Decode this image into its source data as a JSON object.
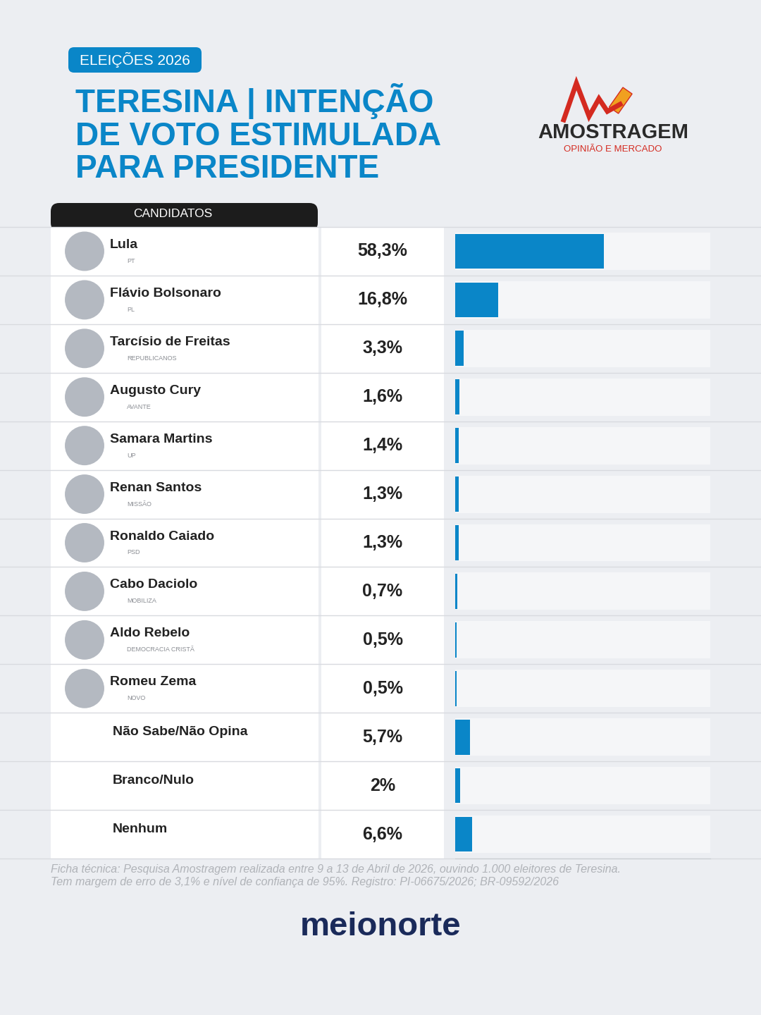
{
  "chart_data": {
    "type": "bar",
    "orientation": "horizontal",
    "badge": "ELEIÇÕES 2026",
    "title": "TERESINA | INTENÇÃO DE VOTO ESTIMULADA PARA PRESIDENTE",
    "logo_name": "AMOSTRAGEM",
    "logo_tagline": "OPINIÃO E MERCADO",
    "column_header": "CANDIDATOS",
    "categories": [
      "Lula",
      "Flávio Bolsonaro",
      "Tarcísio de Freitas",
      "Augusto Cury",
      "Samara Martins",
      "Renan Santos",
      "Ronaldo Caiado",
      "Cabo Daciolo",
      "Aldo Rebelo",
      "Romeu Zema",
      "Não Sabe/Não Opina",
      "Branco/Nulo",
      "Nenhum"
    ],
    "parties": [
      "PT",
      "PL",
      "REPUBLICANOS",
      "AVANTE",
      "UP",
      "MISSÃO",
      "PSD",
      "MOBILIZA",
      "DEMOCRACIA CRISTÃ",
      "NOVO",
      null,
      null,
      null
    ],
    "values": [
      58.3,
      16.8,
      3.3,
      1.6,
      1.4,
      1.3,
      1.3,
      0.7,
      0.5,
      0.5,
      5.7,
      2,
      6.6
    ],
    "value_labels": [
      "58,3%",
      "16,8%",
      "3,3%",
      "1,6%",
      "1,4%",
      "1,3%",
      "1,3%",
      "0,7%",
      "0,5%",
      "0,5%",
      "5,7%",
      "2%",
      "6,6%"
    ],
    "data_labels": true,
    "color": "#0a86c8",
    "xlim": [
      0,
      100
    ],
    "xticks": [],
    "tick_labels": false,
    "footnote": "Ficha técnica: Pesquisa Amostragem realizada entre 9 a 13 de Abril de 2026, ouvindo 1.000 eleitores de Teresina. Tem margem de erro de 3,1% e nível de confiança de 95%. Registro: PI-06675/2026; BR-09592/2026",
    "source": "meionorte"
  }
}
